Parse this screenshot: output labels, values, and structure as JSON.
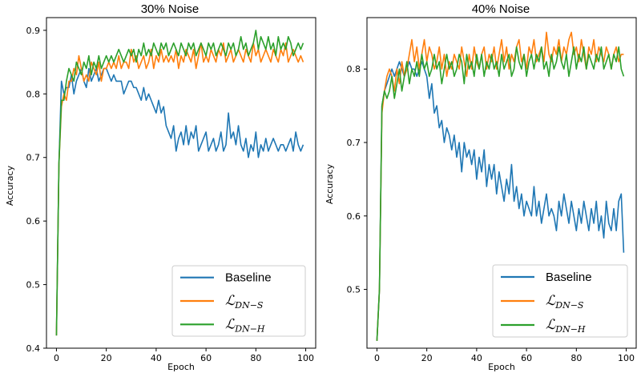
{
  "chart_data": [
    {
      "type": "line",
      "title": "30% Noise",
      "xlabel": "Epoch",
      "ylabel": "Accuracy",
      "xlim": [
        -4,
        104
      ],
      "ylim": [
        0.4,
        0.92
      ],
      "xticks": [
        0,
        20,
        40,
        60,
        80,
        100
      ],
      "yticks": [
        0.4,
        0.5,
        0.6,
        0.7,
        0.8,
        0.9
      ],
      "legend_position": "bottom-right",
      "series": [
        {
          "name": "Baseline",
          "color": "#1f77b4",
          "values": [
            0.42,
            0.69,
            0.82,
            0.8,
            0.81,
            0.81,
            0.83,
            0.8,
            0.82,
            0.83,
            0.84,
            0.82,
            0.81,
            0.84,
            0.82,
            0.83,
            0.84,
            0.82,
            0.83,
            0.84,
            0.84,
            0.83,
            0.82,
            0.83,
            0.82,
            0.82,
            0.82,
            0.8,
            0.81,
            0.82,
            0.82,
            0.81,
            0.81,
            0.8,
            0.79,
            0.81,
            0.79,
            0.8,
            0.79,
            0.78,
            0.77,
            0.79,
            0.77,
            0.78,
            0.75,
            0.74,
            0.73,
            0.75,
            0.71,
            0.73,
            0.74,
            0.72,
            0.75,
            0.72,
            0.74,
            0.73,
            0.75,
            0.71,
            0.72,
            0.73,
            0.74,
            0.71,
            0.72,
            0.73,
            0.71,
            0.72,
            0.74,
            0.71,
            0.72,
            0.77,
            0.73,
            0.74,
            0.72,
            0.75,
            0.72,
            0.71,
            0.73,
            0.7,
            0.72,
            0.71,
            0.74,
            0.7,
            0.72,
            0.71,
            0.73,
            0.71,
            0.72,
            0.73,
            0.72,
            0.71,
            0.72,
            0.72,
            0.71,
            0.72,
            0.73,
            0.71,
            0.74,
            0.72,
            0.71,
            0.72
          ]
        },
        {
          "name": "L_{DN-S}",
          "color": "#ff7f0e",
          "values": [
            0.42,
            0.69,
            0.78,
            0.8,
            0.79,
            0.82,
            0.82,
            0.84,
            0.83,
            0.86,
            0.84,
            0.82,
            0.83,
            0.82,
            0.85,
            0.84,
            0.83,
            0.85,
            0.82,
            0.84,
            0.84,
            0.85,
            0.84,
            0.85,
            0.84,
            0.86,
            0.84,
            0.85,
            0.85,
            0.84,
            0.87,
            0.85,
            0.86,
            0.84,
            0.85,
            0.86,
            0.84,
            0.85,
            0.87,
            0.84,
            0.86,
            0.85,
            0.87,
            0.85,
            0.86,
            0.85,
            0.86,
            0.85,
            0.87,
            0.84,
            0.86,
            0.85,
            0.87,
            0.86,
            0.85,
            0.87,
            0.84,
            0.86,
            0.88,
            0.85,
            0.86,
            0.85,
            0.87,
            0.86,
            0.85,
            0.87,
            0.86,
            0.88,
            0.85,
            0.86,
            0.87,
            0.85,
            0.86,
            0.87,
            0.86,
            0.85,
            0.87,
            0.86,
            0.85,
            0.88,
            0.86,
            0.87,
            0.85,
            0.86,
            0.87,
            0.86,
            0.85,
            0.87,
            0.86,
            0.85,
            0.87,
            0.86,
            0.88,
            0.85,
            0.86,
            0.87,
            0.86,
            0.85,
            0.86,
            0.85
          ]
        },
        {
          "name": "L_{DN-H}",
          "color": "#2ca02c",
          "values": [
            0.42,
            0.69,
            0.79,
            0.79,
            0.82,
            0.84,
            0.83,
            0.82,
            0.85,
            0.84,
            0.83,
            0.85,
            0.84,
            0.86,
            0.83,
            0.85,
            0.84,
            0.86,
            0.84,
            0.85,
            0.86,
            0.85,
            0.86,
            0.85,
            0.86,
            0.87,
            0.86,
            0.85,
            0.86,
            0.87,
            0.86,
            0.87,
            0.85,
            0.87,
            0.86,
            0.88,
            0.86,
            0.87,
            0.86,
            0.88,
            0.87,
            0.86,
            0.88,
            0.87,
            0.88,
            0.86,
            0.87,
            0.88,
            0.87,
            0.86,
            0.88,
            0.87,
            0.86,
            0.88,
            0.87,
            0.88,
            0.86,
            0.87,
            0.88,
            0.87,
            0.86,
            0.88,
            0.87,
            0.88,
            0.86,
            0.87,
            0.88,
            0.87,
            0.86,
            0.88,
            0.87,
            0.88,
            0.86,
            0.87,
            0.89,
            0.87,
            0.88,
            0.86,
            0.87,
            0.88,
            0.9,
            0.87,
            0.89,
            0.88,
            0.87,
            0.89,
            0.87,
            0.88,
            0.86,
            0.89,
            0.87,
            0.88,
            0.87,
            0.89,
            0.88,
            0.86,
            0.87,
            0.88,
            0.87,
            0.88
          ]
        }
      ]
    },
    {
      "type": "line",
      "title": "40% Noise",
      "xlabel": "Epoch",
      "ylabel": "Accuracy",
      "xlim": [
        -4,
        104
      ],
      "ylim": [
        0.42,
        0.87
      ],
      "xticks": [
        0,
        20,
        40,
        60,
        80,
        100
      ],
      "yticks": [
        0.5,
        0.6,
        0.7,
        0.8
      ],
      "legend_position": "bottom-right",
      "series": [
        {
          "name": "Baseline",
          "color": "#1f77b4",
          "values": [
            0.43,
            0.5,
            0.75,
            0.77,
            0.78,
            0.79,
            0.8,
            0.79,
            0.8,
            0.81,
            0.8,
            0.79,
            0.8,
            0.81,
            0.8,
            0.8,
            0.79,
            0.8,
            0.81,
            0.8,
            0.79,
            0.76,
            0.78,
            0.74,
            0.75,
            0.72,
            0.73,
            0.7,
            0.72,
            0.71,
            0.69,
            0.71,
            0.68,
            0.7,
            0.66,
            0.7,
            0.68,
            0.69,
            0.67,
            0.69,
            0.65,
            0.68,
            0.66,
            0.69,
            0.64,
            0.67,
            0.65,
            0.67,
            0.63,
            0.66,
            0.64,
            0.62,
            0.65,
            0.63,
            0.67,
            0.62,
            0.64,
            0.61,
            0.63,
            0.6,
            0.62,
            0.61,
            0.6,
            0.64,
            0.6,
            0.62,
            0.59,
            0.61,
            0.63,
            0.6,
            0.61,
            0.6,
            0.58,
            0.62,
            0.6,
            0.63,
            0.61,
            0.59,
            0.62,
            0.6,
            0.58,
            0.61,
            0.59,
            0.62,
            0.6,
            0.58,
            0.61,
            0.59,
            0.62,
            0.58,
            0.6,
            0.57,
            0.62,
            0.59,
            0.58,
            0.61,
            0.58,
            0.62,
            0.63,
            0.55
          ]
        },
        {
          "name": "L_{DN-S}",
          "color": "#ff7f0e",
          "values": [
            0.43,
            0.5,
            0.74,
            0.77,
            0.79,
            0.8,
            0.79,
            0.77,
            0.8,
            0.78,
            0.81,
            0.79,
            0.8,
            0.82,
            0.84,
            0.81,
            0.83,
            0.8,
            0.82,
            0.84,
            0.81,
            0.83,
            0.82,
            0.8,
            0.81,
            0.83,
            0.8,
            0.82,
            0.79,
            0.81,
            0.8,
            0.82,
            0.81,
            0.8,
            0.83,
            0.81,
            0.79,
            0.82,
            0.8,
            0.83,
            0.81,
            0.8,
            0.82,
            0.83,
            0.8,
            0.82,
            0.81,
            0.83,
            0.8,
            0.82,
            0.84,
            0.81,
            0.83,
            0.8,
            0.82,
            0.81,
            0.83,
            0.84,
            0.81,
            0.82,
            0.8,
            0.83,
            0.82,
            0.84,
            0.81,
            0.82,
            0.83,
            0.81,
            0.85,
            0.82,
            0.81,
            0.83,
            0.82,
            0.84,
            0.81,
            0.83,
            0.82,
            0.84,
            0.85,
            0.82,
            0.83,
            0.81,
            0.84,
            0.82,
            0.8,
            0.83,
            0.82,
            0.84,
            0.81,
            0.83,
            0.82,
            0.81,
            0.83,
            0.82,
            0.8,
            0.82,
            0.83,
            0.81,
            0.82,
            0.82
          ]
        },
        {
          "name": "L_{DN-H}",
          "color": "#2ca02c",
          "values": [
            0.43,
            0.5,
            0.75,
            0.77,
            0.76,
            0.77,
            0.79,
            0.76,
            0.78,
            0.8,
            0.77,
            0.79,
            0.81,
            0.78,
            0.8,
            0.79,
            0.81,
            0.79,
            0.82,
            0.8,
            0.81,
            0.79,
            0.8,
            0.82,
            0.8,
            0.81,
            0.78,
            0.8,
            0.82,
            0.8,
            0.81,
            0.79,
            0.8,
            0.82,
            0.81,
            0.78,
            0.82,
            0.8,
            0.81,
            0.79,
            0.82,
            0.8,
            0.82,
            0.79,
            0.81,
            0.8,
            0.82,
            0.8,
            0.81,
            0.79,
            0.82,
            0.8,
            0.81,
            0.82,
            0.79,
            0.8,
            0.83,
            0.81,
            0.8,
            0.82,
            0.79,
            0.81,
            0.82,
            0.8,
            0.82,
            0.81,
            0.83,
            0.8,
            0.81,
            0.79,
            0.82,
            0.8,
            0.81,
            0.83,
            0.81,
            0.8,
            0.82,
            0.79,
            0.81,
            0.83,
            0.8,
            0.82,
            0.81,
            0.83,
            0.8,
            0.82,
            0.81,
            0.8,
            0.82,
            0.81,
            0.83,
            0.8,
            0.81,
            0.82,
            0.8,
            0.82,
            0.81,
            0.83,
            0.8,
            0.79
          ]
        }
      ]
    }
  ]
}
